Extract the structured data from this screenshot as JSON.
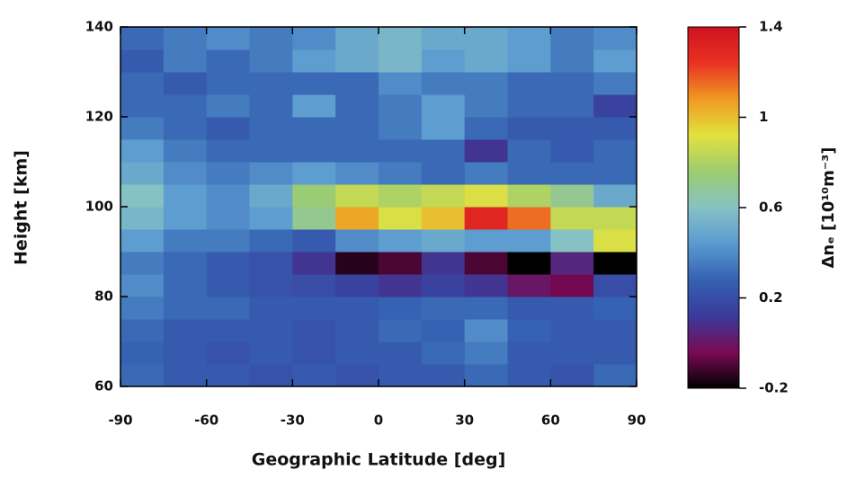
{
  "chart_data": {
    "type": "heatmap",
    "xlabel": "Geographic Latitude [deg]",
    "ylabel": "Height [km]",
    "colorbar_label": "Δnₑ [10¹⁰m⁻³]",
    "xbins": [
      -90,
      -75,
      -60,
      -45,
      -30,
      -15,
      0,
      15,
      30,
      45,
      60,
      75,
      90
    ],
    "ybins": [
      60,
      65,
      70,
      75,
      80,
      85,
      90,
      95,
      100,
      105,
      110,
      115,
      120,
      125,
      130,
      135,
      140
    ],
    "z": [
      [
        0.3,
        0.25,
        0.25,
        0.22,
        0.25,
        0.22,
        0.25,
        0.25,
        0.3,
        0.25,
        0.22,
        0.3
      ],
      [
        0.28,
        0.25,
        0.22,
        0.25,
        0.22,
        0.25,
        0.25,
        0.3,
        0.35,
        0.25,
        0.25,
        0.25
      ],
      [
        0.3,
        0.25,
        0.25,
        0.25,
        0.22,
        0.25,
        0.3,
        0.28,
        0.4,
        0.28,
        0.25,
        0.25
      ],
      [
        0.35,
        0.3,
        0.3,
        0.25,
        0.25,
        0.25,
        0.28,
        0.3,
        0.3,
        0.25,
        0.25,
        0.28
      ],
      [
        0.4,
        0.3,
        0.25,
        0.22,
        0.2,
        0.15,
        0.1,
        0.15,
        0.1,
        0.0,
        -0.05,
        0.2
      ],
      [
        0.35,
        0.3,
        0.25,
        0.22,
        0.1,
        -0.15,
        -0.1,
        0.1,
        -0.1,
        -0.2,
        0.05,
        -0.2
      ],
      [
        0.45,
        0.35,
        0.35,
        0.3,
        0.25,
        0.4,
        0.45,
        0.5,
        0.45,
        0.45,
        0.6,
        0.9
      ],
      [
        0.55,
        0.45,
        0.4,
        0.45,
        0.7,
        1.05,
        0.9,
        1.0,
        1.3,
        1.15,
        0.85,
        0.85
      ],
      [
        0.6,
        0.45,
        0.4,
        0.5,
        0.75,
        0.85,
        0.8,
        0.85,
        0.9,
        0.8,
        0.7,
        0.5
      ],
      [
        0.5,
        0.4,
        0.35,
        0.4,
        0.45,
        0.4,
        0.35,
        0.3,
        0.35,
        0.3,
        0.3,
        0.3
      ],
      [
        0.45,
        0.35,
        0.3,
        0.3,
        0.3,
        0.3,
        0.3,
        0.3,
        0.1,
        0.3,
        0.25,
        0.3
      ],
      [
        0.35,
        0.3,
        0.25,
        0.3,
        0.3,
        0.3,
        0.35,
        0.45,
        0.3,
        0.25,
        0.25,
        0.25
      ],
      [
        0.3,
        0.3,
        0.35,
        0.3,
        0.45,
        0.3,
        0.35,
        0.45,
        0.35,
        0.3,
        0.3,
        0.15
      ],
      [
        0.3,
        0.25,
        0.3,
        0.3,
        0.3,
        0.3,
        0.4,
        0.35,
        0.35,
        0.3,
        0.3,
        0.35
      ],
      [
        0.25,
        0.35,
        0.3,
        0.35,
        0.45,
        0.5,
        0.55,
        0.45,
        0.5,
        0.45,
        0.35,
        0.45
      ],
      [
        0.3,
        0.35,
        0.4,
        0.35,
        0.4,
        0.5,
        0.55,
        0.5,
        0.5,
        0.45,
        0.35,
        0.4
      ]
    ],
    "xlim": [
      -90,
      90
    ],
    "xticks": [
      -90,
      -60,
      -30,
      0,
      30,
      60,
      90
    ],
    "ylim": [
      60,
      140
    ],
    "yticks": [
      60,
      80,
      100,
      120,
      140
    ],
    "zlim": [
      -0.2,
      1.4
    ],
    "zticks": [
      -0.2,
      0.2,
      0.6,
      1.0,
      1.4
    ],
    "colorscale": [
      "#000000",
      "#7a0a55",
      "#3a3a9a",
      "#3562b2",
      "#5a9ad0",
      "#86c2c4",
      "#9ccc70",
      "#e2e23e",
      "#f09a22",
      "#e83222",
      "#d0121e"
    ]
  }
}
